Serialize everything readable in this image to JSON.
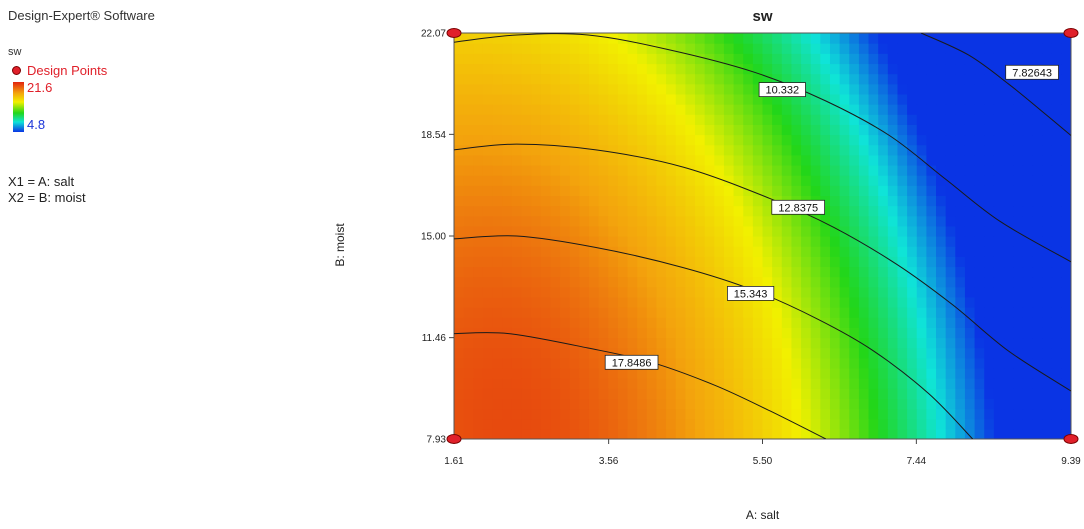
{
  "app": {
    "title": "Design-Expert® Software"
  },
  "legend": {
    "response_name": "sw",
    "design_points_label": "Design Points",
    "max_label": "21.6",
    "min_label": "4.8",
    "marker_color": "#e0202a",
    "max_color": "#e0202a",
    "min_color": "#1b34d8"
  },
  "factors": [
    {
      "label": "X1 = A: salt"
    },
    {
      "label": "X2 = B: moist"
    }
  ],
  "chart_data": {
    "type": "heatmap",
    "subtype": "contour",
    "title": "sw",
    "xlabel": "A: salt",
    "ylabel": "B: moist",
    "xlim": [
      1.61,
      9.39
    ],
    "ylim": [
      7.93,
      22.07
    ],
    "x_ticks": [
      "1.61",
      "3.56",
      "5.50",
      "7.44",
      "9.39"
    ],
    "y_ticks": [
      "7.93",
      "11.46",
      "15.00",
      "18.54",
      "22.07"
    ],
    "color_range": [
      4.8,
      21.6
    ],
    "colorscale": [
      "#0a34e4",
      "#0fe4d8",
      "#22d619",
      "#f2f000",
      "#f3a30d",
      "#e2240f"
    ],
    "contours": [
      {
        "level": "7.82643",
        "points": [
          [
            7.5,
            22.07
          ],
          [
            8.1,
            21.3
          ],
          [
            8.6,
            20.3
          ],
          [
            9.0,
            19.4
          ],
          [
            9.39,
            18.5
          ]
        ],
        "label_at": [
          8.9,
          20.7
        ]
      },
      {
        "level": "10.332",
        "points": [
          [
            1.61,
            21.75
          ],
          [
            2.4,
            22.0
          ],
          [
            3.3,
            22.0
          ],
          [
            4.3,
            21.5
          ],
          [
            5.4,
            20.7
          ],
          [
            6.3,
            19.7
          ],
          [
            7.1,
            18.5
          ],
          [
            7.8,
            17.0
          ],
          [
            8.5,
            15.5
          ],
          [
            9.39,
            14.1
          ]
        ],
        "label_at": [
          5.75,
          20.1
        ]
      },
      {
        "level": "12.8375",
        "points": [
          [
            1.61,
            18.0
          ],
          [
            2.4,
            18.2
          ],
          [
            3.4,
            18.0
          ],
          [
            4.5,
            17.4
          ],
          [
            5.6,
            16.3
          ],
          [
            6.4,
            15.3
          ],
          [
            7.2,
            14.0
          ],
          [
            7.9,
            12.6
          ],
          [
            8.6,
            11.0
          ],
          [
            9.39,
            9.6
          ]
        ],
        "label_at": [
          5.95,
          16.0
        ]
      },
      {
        "level": "15.343",
        "points": [
          [
            1.61,
            14.9
          ],
          [
            2.4,
            15.0
          ],
          [
            3.4,
            14.6
          ],
          [
            4.5,
            13.9
          ],
          [
            5.4,
            13.1
          ],
          [
            6.2,
            12.1
          ],
          [
            6.9,
            11.0
          ],
          [
            7.6,
            9.5
          ],
          [
            8.15,
            7.93
          ]
        ],
        "label_at": [
          5.35,
          13.0
        ]
      },
      {
        "level": "17.8486",
        "points": [
          [
            1.61,
            11.6
          ],
          [
            2.3,
            11.6
          ],
          [
            3.3,
            11.1
          ],
          [
            4.1,
            10.6
          ],
          [
            4.9,
            9.8
          ],
          [
            5.6,
            8.9
          ],
          [
            6.3,
            7.93
          ]
        ],
        "label_at": [
          3.85,
          10.6
        ]
      }
    ],
    "design_points": [
      [
        1.61,
        22.07
      ],
      [
        9.39,
        22.07
      ],
      [
        1.61,
        7.93
      ],
      [
        9.39,
        7.93
      ]
    ]
  }
}
